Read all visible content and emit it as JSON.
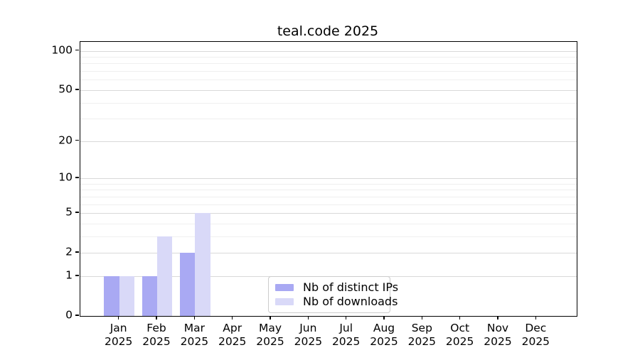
{
  "chart_data": {
    "type": "bar",
    "title": "teal.code 2025",
    "categories": [
      "Jan",
      "Feb",
      "Mar",
      "Apr",
      "May",
      "Jun",
      "Jul",
      "Aug",
      "Sep",
      "Oct",
      "Nov",
      "Dec"
    ],
    "x_tick_second_line": "2025",
    "series": [
      {
        "name": "Nb of distinct IPs",
        "color": "#a9a9f3",
        "values": [
          1,
          1,
          2,
          0,
          0,
          0,
          0,
          0,
          0,
          0,
          0,
          0
        ]
      },
      {
        "name": "Nb of downloads",
        "color": "#d9d9f8",
        "values": [
          1,
          3,
          5,
          0,
          0,
          0,
          0,
          0,
          0,
          0,
          0,
          0
        ]
      }
    ],
    "xlabel": "",
    "ylabel": "",
    "yscale": "log10(value+1)",
    "ylim": [
      0,
      117
    ],
    "yticks": [
      0,
      1,
      2,
      5,
      10,
      20,
      50,
      100
    ],
    "minor_yticks": [
      3,
      4,
      6,
      7,
      8,
      9,
      30,
      40,
      60,
      70,
      80,
      90
    ],
    "grid": "horizontal",
    "legend_position": "lower center"
  },
  "colors": {
    "major_grid": "#d9d9d9",
    "minor_grid": "#efefef",
    "axis": "#000000",
    "text": "#000000",
    "legend_border": "#cccccc",
    "background": "#ffffff"
  }
}
